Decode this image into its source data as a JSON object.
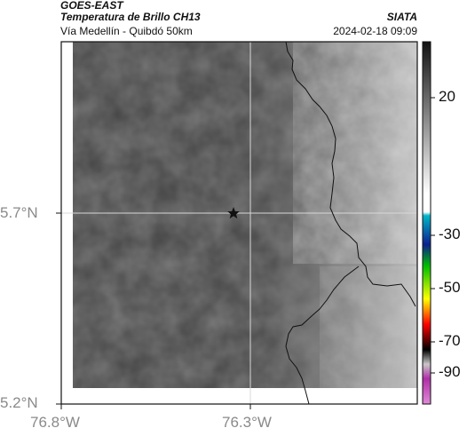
{
  "header": {
    "satellite": "GOES-EAST",
    "product": "Temperatura de Brillo CH13",
    "organization": "SIATA",
    "region": "Vía Medellín - Quibdó 50km",
    "datetime": "2024-02-18 09:09"
  },
  "map": {
    "longitude_ticks": [
      "76.8°W",
      "76.3°W"
    ],
    "latitude_ticks": [
      "5.7°N",
      "5.2°N"
    ],
    "marker_icon": "star-icon"
  },
  "colorbar": {
    "tick_labels": [
      "20",
      "-30",
      "-50",
      "-70",
      "-90"
    ],
    "color_stops": [
      "#111111",
      "#ffffff",
      "#00b7c7",
      "#0b1f8f",
      "#00c000",
      "#ffff00",
      "#ff0000",
      "#000000",
      "#c8c8c8",
      "#b02fa8",
      "#d070c8"
    ]
  }
}
